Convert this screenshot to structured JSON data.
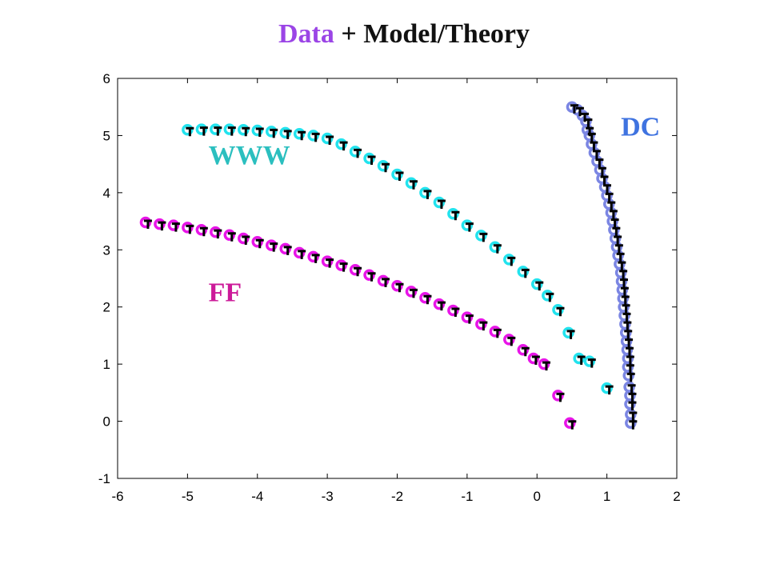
{
  "chart_data": {
    "type": "scatter",
    "title_parts": [
      {
        "text": "Data",
        "color": "#9b45e6"
      },
      {
        "text": " + Model/Theory",
        "color": "#111111"
      }
    ],
    "xlabel": "",
    "ylabel": "",
    "xlim": [
      -6,
      2
    ],
    "ylim": [
      -1,
      6
    ],
    "xticks": [
      -6,
      -5,
      -4,
      -3,
      -2,
      -1,
      0,
      1,
      2
    ],
    "yticks": [
      -1,
      0,
      1,
      2,
      3,
      4,
      5,
      6
    ],
    "grid": false,
    "series": [
      {
        "name": "WWW",
        "color": "#22e3ee",
        "label_color": "#2bbfbf",
        "label_pos": [
          -4.7,
          4.5
        ],
        "data": [
          [
            -5.0,
            5.1
          ],
          [
            -4.8,
            5.11
          ],
          [
            -4.6,
            5.11
          ],
          [
            -4.4,
            5.11
          ],
          [
            -4.2,
            5.1
          ],
          [
            -4.0,
            5.09
          ],
          [
            -3.8,
            5.07
          ],
          [
            -3.6,
            5.05
          ],
          [
            -3.4,
            5.03
          ],
          [
            -3.2,
            5.0
          ],
          [
            -3.0,
            4.95
          ],
          [
            -2.8,
            4.85
          ],
          [
            -2.6,
            4.72
          ],
          [
            -2.4,
            4.6
          ],
          [
            -2.2,
            4.47
          ],
          [
            -2.0,
            4.32
          ],
          [
            -1.8,
            4.17
          ],
          [
            -1.6,
            4.0
          ],
          [
            -1.4,
            3.83
          ],
          [
            -1.2,
            3.63
          ],
          [
            -1.0,
            3.43
          ],
          [
            -0.8,
            3.25
          ],
          [
            -0.6,
            3.05
          ],
          [
            -0.4,
            2.83
          ],
          [
            -0.2,
            2.62
          ],
          [
            0.0,
            2.4
          ],
          [
            0.15,
            2.2
          ],
          [
            0.3,
            1.95
          ],
          [
            0.45,
            1.55
          ],
          [
            0.6,
            1.1
          ],
          [
            0.75,
            1.05
          ],
          [
            1.0,
            0.58
          ]
        ]
      },
      {
        "name": "FF",
        "color": "#e815e8",
        "label_color": "#cc1a99",
        "label_pos": [
          -4.7,
          2.1
        ],
        "data": [
          [
            -5.6,
            3.48
          ],
          [
            -5.4,
            3.45
          ],
          [
            -5.2,
            3.43
          ],
          [
            -5.0,
            3.39
          ],
          [
            -4.8,
            3.35
          ],
          [
            -4.6,
            3.31
          ],
          [
            -4.4,
            3.26
          ],
          [
            -4.2,
            3.2
          ],
          [
            -4.0,
            3.14
          ],
          [
            -3.8,
            3.08
          ],
          [
            -3.6,
            3.02
          ],
          [
            -3.4,
            2.95
          ],
          [
            -3.2,
            2.88
          ],
          [
            -3.0,
            2.8
          ],
          [
            -2.8,
            2.73
          ],
          [
            -2.6,
            2.65
          ],
          [
            -2.4,
            2.56
          ],
          [
            -2.2,
            2.46
          ],
          [
            -2.0,
            2.37
          ],
          [
            -1.8,
            2.27
          ],
          [
            -1.6,
            2.16
          ],
          [
            -1.4,
            2.05
          ],
          [
            -1.2,
            1.94
          ],
          [
            -1.0,
            1.82
          ],
          [
            -0.8,
            1.7
          ],
          [
            -0.6,
            1.57
          ],
          [
            -0.4,
            1.43
          ],
          [
            -0.2,
            1.25
          ],
          [
            -0.05,
            1.1
          ],
          [
            0.1,
            1.0
          ],
          [
            0.3,
            0.45
          ],
          [
            0.47,
            -0.03
          ]
        ]
      },
      {
        "name": "DC",
        "color": "#7b86e3",
        "label_color": "#3f73e0",
        "label_pos": [
          1.2,
          5.0
        ],
        "data": [
          [
            0.5,
            5.5
          ],
          [
            0.58,
            5.45
          ],
          [
            0.65,
            5.35
          ],
          [
            0.7,
            5.25
          ],
          [
            0.72,
            5.1
          ],
          [
            0.75,
            5.0
          ],
          [
            0.78,
            4.85
          ],
          [
            0.82,
            4.7
          ],
          [
            0.86,
            4.55
          ],
          [
            0.9,
            4.4
          ],
          [
            0.93,
            4.25
          ],
          [
            0.97,
            4.1
          ],
          [
            1.0,
            3.95
          ],
          [
            1.03,
            3.8
          ],
          [
            1.06,
            3.65
          ],
          [
            1.08,
            3.5
          ],
          [
            1.1,
            3.35
          ],
          [
            1.12,
            3.2
          ],
          [
            1.14,
            3.05
          ],
          [
            1.16,
            2.9
          ],
          [
            1.18,
            2.75
          ],
          [
            1.2,
            2.6
          ],
          [
            1.21,
            2.45
          ],
          [
            1.22,
            2.3
          ],
          [
            1.23,
            2.15
          ],
          [
            1.24,
            2.0
          ],
          [
            1.25,
            1.85
          ],
          [
            1.26,
            1.7
          ],
          [
            1.27,
            1.55
          ],
          [
            1.28,
            1.4
          ],
          [
            1.29,
            1.25
          ],
          [
            1.3,
            1.1
          ],
          [
            1.3,
            0.95
          ],
          [
            1.31,
            0.8
          ],
          [
            1.32,
            0.6
          ],
          [
            1.33,
            0.45
          ],
          [
            1.33,
            0.3
          ],
          [
            1.34,
            0.12
          ],
          [
            1.34,
            -0.03
          ]
        ]
      }
    ]
  }
}
